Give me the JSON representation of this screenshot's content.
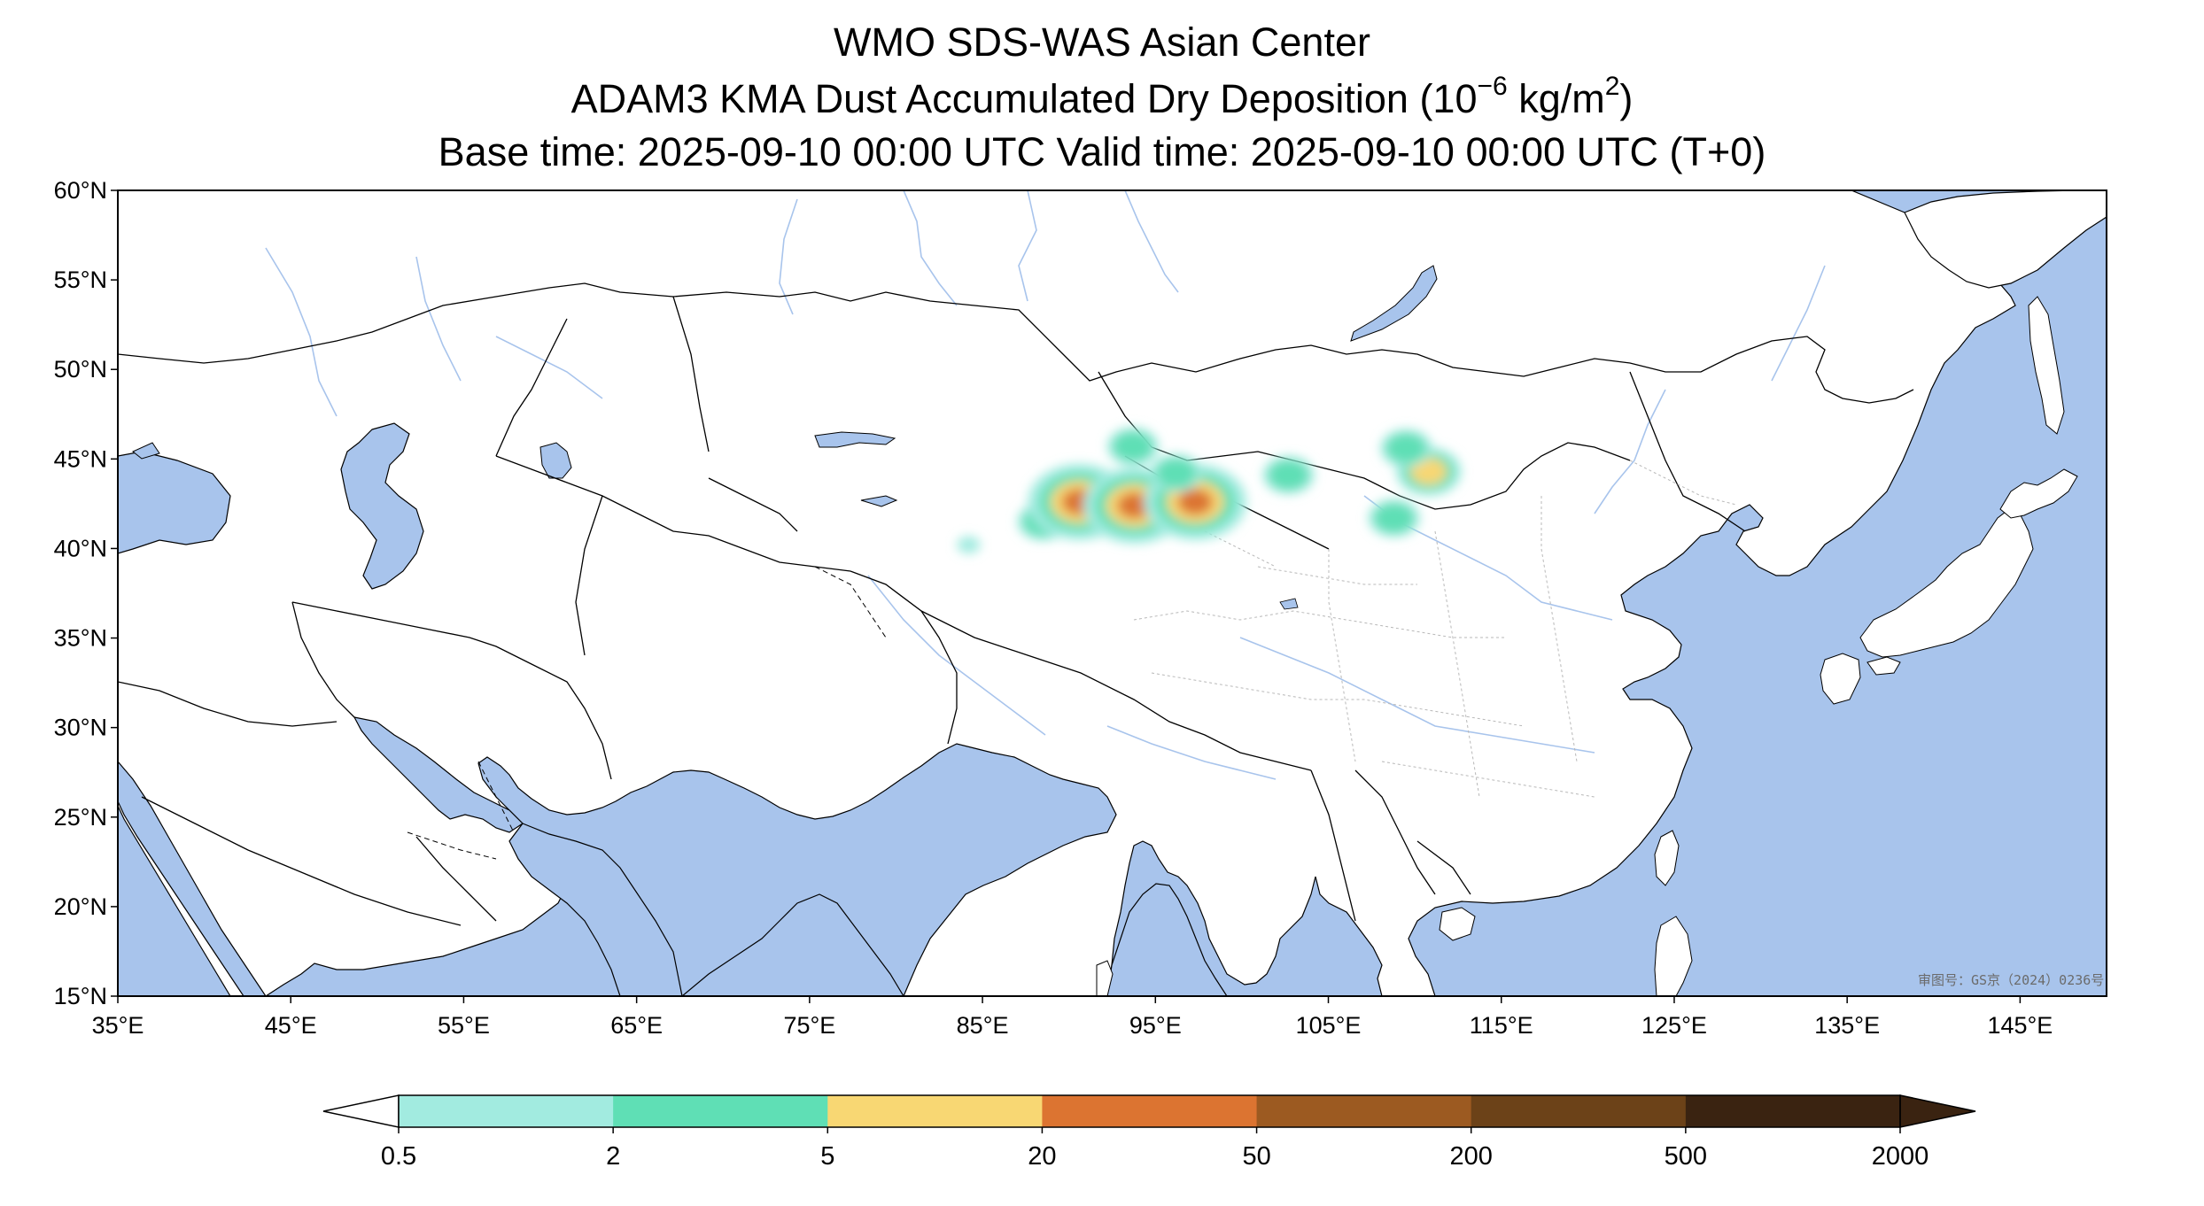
{
  "title": {
    "line1": "WMO SDS-WAS Asian Center",
    "line2_prefix": "ADAM3 KMA Dust Accumulated Dry Deposition (10",
    "line2_exponent": "−6",
    "line2_mid": " kg/m",
    "line2_exponent2": "2",
    "line2_suffix": ")",
    "line3": "Base time: 2025-09-10 00:00 UTC Valid time: 2025-09-10 00:00 UTC (T+0)"
  },
  "map": {
    "projection": "PlateCarree",
    "lon_range": [
      35,
      150
    ],
    "lat_range": [
      15,
      60
    ],
    "lon_ticks": [
      "35°E",
      "45°E",
      "55°E",
      "65°E",
      "75°E",
      "85°E",
      "95°E",
      "105°E",
      "115°E",
      "125°E",
      "135°E",
      "145°E"
    ],
    "lat_ticks": [
      "60°N",
      "55°N",
      "50°N",
      "45°N",
      "40°N",
      "35°N",
      "30°N",
      "25°N",
      "20°N",
      "15°N"
    ],
    "approval_text": "审图号：GS京（2024）0236号",
    "colors": {
      "ocean": "#a8c4ec",
      "land": "#ffffff",
      "border": "#000000",
      "river": "#a8c4ec"
    }
  },
  "colorbar": {
    "labels": [
      "0.5",
      "2",
      "5",
      "20",
      "50",
      "200",
      "500",
      "2000"
    ],
    "colors": [
      "#a2ebe0",
      "#5fdfb5",
      "#f8d773",
      "#dc7431",
      "#9c5a21",
      "#6c4218",
      "#3a2311"
    ],
    "extend": "both"
  },
  "dust_areas": [
    {
      "lon": 88.5,
      "lat": 41.5,
      "level": 1
    },
    {
      "lon": 90.6,
      "lat": 42.6,
      "level": 3
    },
    {
      "lon": 93.8,
      "lat": 42.4,
      "level": 3
    },
    {
      "lon": 97.3,
      "lat": 42.6,
      "level": 3
    },
    {
      "lon": 93.7,
      "lat": 45.7,
      "level": 1
    },
    {
      "lon": 96.2,
      "lat": 44.2,
      "level": 1
    },
    {
      "lon": 102.7,
      "lat": 44.1,
      "level": 1
    },
    {
      "lon": 110.8,
      "lat": 44.3,
      "level": 2
    },
    {
      "lon": 109.5,
      "lat": 45.6,
      "level": 1
    },
    {
      "lon": 108.8,
      "lat": 41.7,
      "level": 1
    },
    {
      "lon": 84.2,
      "lat": 40.2,
      "level": 0
    }
  ]
}
